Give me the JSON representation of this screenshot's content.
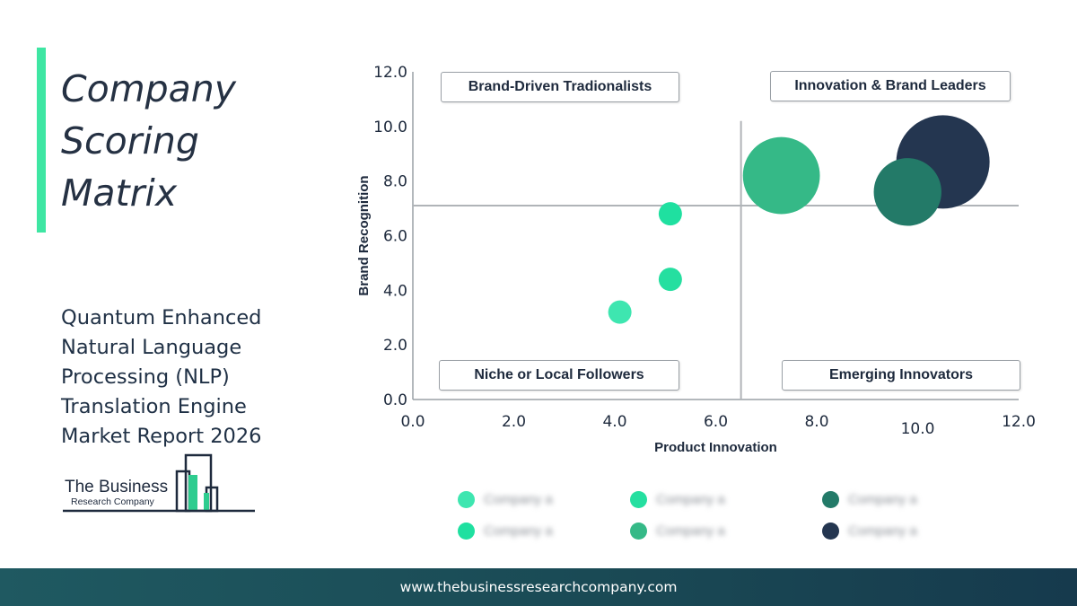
{
  "header": {
    "title": "Company Scoring Matrix",
    "subtitle": "Quantum Enhanced Natural Language Processing (NLP) Translation Engine Market Report 2026"
  },
  "logo": {
    "line1": "The Business",
    "line2": "Research Company"
  },
  "colors": {
    "accent": "#3ee6a3",
    "dark": "#253143",
    "footer": "#1a4a55"
  },
  "chart_data": {
    "type": "scatter",
    "variant": "bubble",
    "xlabel": "Product Innovation",
    "ylabel": "Brand Recognition",
    "xlim": [
      0,
      12
    ],
    "ylim": [
      0,
      12
    ],
    "x_ticks": [
      "0.0",
      "2.0",
      "4.0",
      "6.0",
      "8.0",
      "10.0",
      "12.0"
    ],
    "y_ticks": [
      "0.0",
      "2.0",
      "4.0",
      "6.0",
      "8.0",
      "10.0",
      "12.0"
    ],
    "divider": {
      "x": 6.5,
      "y": 7.1
    },
    "grid": false,
    "quadrants": {
      "top_left": "Brand-Driven Tradionalists",
      "top_right": "Innovation & Brand Leaders",
      "bottom_left": "Niche or Local Followers",
      "bottom_right": "Emerging Innovators"
    },
    "points": [
      {
        "x": 4.1,
        "y": 3.2,
        "size": 1.0,
        "color": "#3ee6b0"
      },
      {
        "x": 5.1,
        "y": 4.4,
        "size": 1.0,
        "color": "#25dfa0"
      },
      {
        "x": 5.1,
        "y": 6.8,
        "size": 1.0,
        "color": "#1fe0a0"
      },
      {
        "x": 7.3,
        "y": 8.2,
        "size": 3.3,
        "color": "#35b987"
      },
      {
        "x": 10.5,
        "y": 8.7,
        "size": 4.0,
        "color": "#243650"
      },
      {
        "x": 9.8,
        "y": 7.6,
        "size": 2.9,
        "color": "#237a68"
      }
    ]
  },
  "legend": {
    "items": [
      {
        "label": "Company a",
        "color": "#3ee6b0"
      },
      {
        "label": "Company a",
        "color": "#25dfa0"
      },
      {
        "label": "Company a",
        "color": "#237a68"
      },
      {
        "label": "Company a",
        "color": "#1fe0a0"
      },
      {
        "label": "Company a",
        "color": "#35b987"
      },
      {
        "label": "Company a",
        "color": "#243650"
      }
    ]
  },
  "footer": {
    "url": "www.thebusinessresearchcompany.com"
  }
}
